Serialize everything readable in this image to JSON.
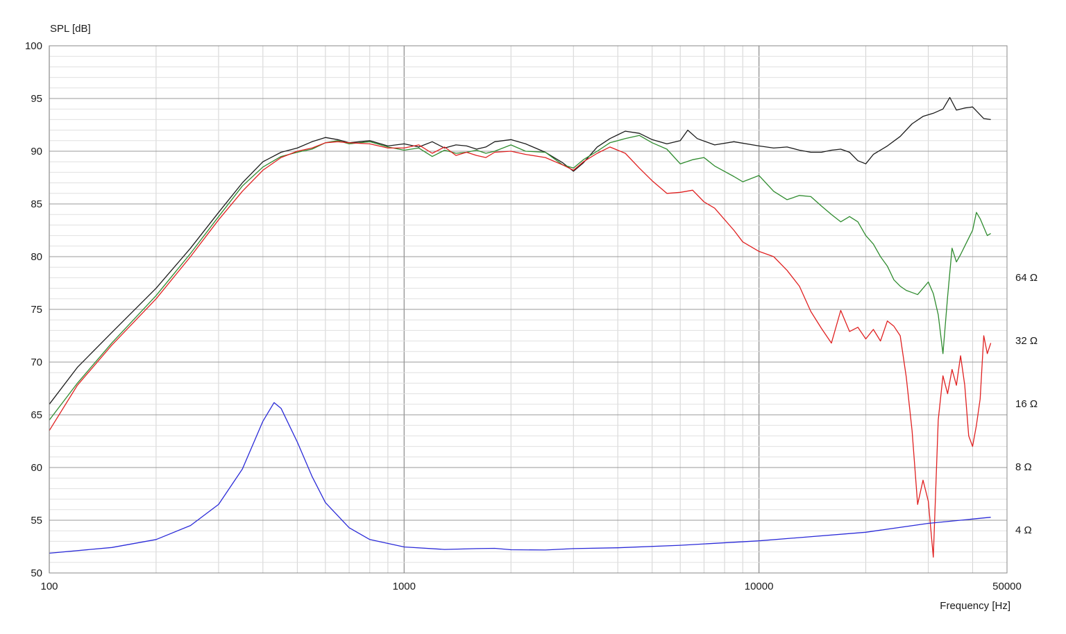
{
  "chart_data": {
    "type": "line",
    "ylabel": "SPL [dB]",
    "xlabel": "Frequency [Hz]",
    "xscale": "log",
    "xlim": [
      100,
      50000
    ],
    "ylim": [
      50,
      100
    ],
    "grid": true,
    "x_tick_labels": [
      {
        "value": 100,
        "label": "100"
      },
      {
        "value": 1000,
        "label": "1000"
      },
      {
        "value": 10000,
        "label": "10000"
      },
      {
        "value": 50000,
        "label": "50000"
      }
    ],
    "y_tick_labels": [
      "50",
      "55",
      "60",
      "65",
      "70",
      "75",
      "80",
      "85",
      "90",
      "95",
      "100"
    ],
    "impedance_axis": {
      "scale": "log2",
      "labels": [
        {
          "value": 4,
          "label": "4 Ω"
        },
        {
          "value": 8,
          "label": "8 Ω"
        },
        {
          "value": 16,
          "label": "16 Ω"
        },
        {
          "value": 32,
          "label": "32 Ω"
        },
        {
          "value": 64,
          "label": "64 Ω"
        }
      ]
    },
    "series": [
      {
        "color": "#1a1a1a",
        "axis": "spl",
        "points": [
          [
            100,
            66.0
          ],
          [
            120,
            69.5
          ],
          [
            150,
            72.8
          ],
          [
            200,
            77.0
          ],
          [
            250,
            80.8
          ],
          [
            300,
            84.2
          ],
          [
            350,
            87.0
          ],
          [
            400,
            89.0
          ],
          [
            450,
            89.9
          ],
          [
            500,
            90.3
          ],
          [
            550,
            90.9
          ],
          [
            600,
            91.3
          ],
          [
            650,
            91.1
          ],
          [
            700,
            90.8
          ],
          [
            800,
            91.0
          ],
          [
            900,
            90.5
          ],
          [
            1000,
            90.7
          ],
          [
            1100,
            90.4
          ],
          [
            1200,
            90.9
          ],
          [
            1300,
            90.3
          ],
          [
            1400,
            90.6
          ],
          [
            1500,
            90.5
          ],
          [
            1600,
            90.2
          ],
          [
            1700,
            90.4
          ],
          [
            1800,
            90.9
          ],
          [
            2000,
            91.1
          ],
          [
            2200,
            90.7
          ],
          [
            2500,
            89.9
          ],
          [
            2800,
            88.9
          ],
          [
            3000,
            88.1
          ],
          [
            3200,
            88.9
          ],
          [
            3500,
            90.4
          ],
          [
            3800,
            91.2
          ],
          [
            4200,
            91.9
          ],
          [
            4600,
            91.7
          ],
          [
            5000,
            91.1
          ],
          [
            5500,
            90.7
          ],
          [
            6000,
            91.0
          ],
          [
            6300,
            92.0
          ],
          [
            6700,
            91.2
          ],
          [
            7500,
            90.6
          ],
          [
            8500,
            90.9
          ],
          [
            10000,
            90.5
          ],
          [
            11000,
            90.3
          ],
          [
            12000,
            90.4
          ],
          [
            13000,
            90.1
          ],
          [
            14000,
            89.9
          ],
          [
            15000,
            89.9
          ],
          [
            16000,
            90.1
          ],
          [
            17000,
            90.2
          ],
          [
            18000,
            89.9
          ],
          [
            19000,
            89.1
          ],
          [
            20000,
            88.8
          ],
          [
            21000,
            89.7
          ],
          [
            23000,
            90.5
          ],
          [
            25000,
            91.4
          ],
          [
            27000,
            92.6
          ],
          [
            29000,
            93.3
          ],
          [
            31000,
            93.6
          ],
          [
            33000,
            94.0
          ],
          [
            34500,
            95.1
          ],
          [
            36000,
            93.9
          ],
          [
            38000,
            94.1
          ],
          [
            40000,
            94.2
          ],
          [
            43000,
            93.1
          ],
          [
            45000,
            93.0
          ]
        ]
      },
      {
        "color": "#2e8b2e",
        "axis": "spl",
        "points": [
          [
            100,
            64.5
          ],
          [
            120,
            68.0
          ],
          [
            150,
            71.8
          ],
          [
            200,
            76.3
          ],
          [
            250,
            80.3
          ],
          [
            300,
            83.8
          ],
          [
            350,
            86.7
          ],
          [
            400,
            88.5
          ],
          [
            450,
            89.5
          ],
          [
            500,
            89.9
          ],
          [
            550,
            90.2
          ],
          [
            600,
            90.8
          ],
          [
            650,
            91.0
          ],
          [
            700,
            90.7
          ],
          [
            800,
            90.9
          ],
          [
            900,
            90.4
          ],
          [
            1000,
            90.1
          ],
          [
            1100,
            90.3
          ],
          [
            1200,
            89.5
          ],
          [
            1300,
            90.1
          ],
          [
            1400,
            89.8
          ],
          [
            1500,
            89.9
          ],
          [
            1600,
            90.1
          ],
          [
            1700,
            89.8
          ],
          [
            1800,
            90.0
          ],
          [
            2000,
            90.6
          ],
          [
            2200,
            90.0
          ],
          [
            2500,
            89.9
          ],
          [
            2800,
            88.7
          ],
          [
            3000,
            88.4
          ],
          [
            3200,
            89.2
          ],
          [
            3500,
            90.0
          ],
          [
            3800,
            90.8
          ],
          [
            4200,
            91.2
          ],
          [
            4600,
            91.5
          ],
          [
            5000,
            90.8
          ],
          [
            5500,
            90.2
          ],
          [
            6000,
            88.8
          ],
          [
            6500,
            89.2
          ],
          [
            7000,
            89.4
          ],
          [
            7500,
            88.6
          ],
          [
            8500,
            87.6
          ],
          [
            9000,
            87.1
          ],
          [
            10000,
            87.7
          ],
          [
            11000,
            86.2
          ],
          [
            12000,
            85.4
          ],
          [
            13000,
            85.8
          ],
          [
            14000,
            85.7
          ],
          [
            15000,
            84.8
          ],
          [
            16000,
            84.0
          ],
          [
            17000,
            83.3
          ],
          [
            18000,
            83.8
          ],
          [
            19000,
            83.3
          ],
          [
            20000,
            82.0
          ],
          [
            21000,
            81.2
          ],
          [
            22000,
            80.0
          ],
          [
            23000,
            79.1
          ],
          [
            24000,
            77.8
          ],
          [
            25000,
            77.2
          ],
          [
            26000,
            76.8
          ],
          [
            27000,
            76.6
          ],
          [
            28000,
            76.4
          ],
          [
            29000,
            77.0
          ],
          [
            30000,
            77.6
          ],
          [
            31000,
            76.5
          ],
          [
            32000,
            74.5
          ],
          [
            33000,
            70.8
          ],
          [
            34000,
            76.2
          ],
          [
            35000,
            80.8
          ],
          [
            36000,
            79.5
          ],
          [
            37000,
            80.2
          ],
          [
            38000,
            81.0
          ],
          [
            40000,
            82.5
          ],
          [
            41000,
            84.2
          ],
          [
            42000,
            83.6
          ],
          [
            44000,
            82.0
          ],
          [
            45000,
            82.2
          ]
        ]
      },
      {
        "color": "#e02020",
        "axis": "spl",
        "points": [
          [
            100,
            63.5
          ],
          [
            120,
            67.8
          ],
          [
            150,
            71.6
          ],
          [
            200,
            76.0
          ],
          [
            250,
            80.0
          ],
          [
            300,
            83.5
          ],
          [
            350,
            86.2
          ],
          [
            400,
            88.2
          ],
          [
            450,
            89.4
          ],
          [
            500,
            90.0
          ],
          [
            550,
            90.3
          ],
          [
            600,
            90.8
          ],
          [
            650,
            90.9
          ],
          [
            700,
            90.8
          ],
          [
            800,
            90.7
          ],
          [
            900,
            90.3
          ],
          [
            1000,
            90.3
          ],
          [
            1100,
            90.6
          ],
          [
            1200,
            89.8
          ],
          [
            1300,
            90.4
          ],
          [
            1400,
            89.6
          ],
          [
            1500,
            89.9
          ],
          [
            1600,
            89.6
          ],
          [
            1700,
            89.4
          ],
          [
            1800,
            89.9
          ],
          [
            2000,
            90.0
          ],
          [
            2200,
            89.7
          ],
          [
            2500,
            89.4
          ],
          [
            2800,
            88.7
          ],
          [
            3000,
            88.2
          ],
          [
            3200,
            89.0
          ],
          [
            3500,
            89.8
          ],
          [
            3800,
            90.4
          ],
          [
            4200,
            89.8
          ],
          [
            4600,
            88.4
          ],
          [
            5000,
            87.2
          ],
          [
            5500,
            86.0
          ],
          [
            6000,
            86.1
          ],
          [
            6500,
            86.3
          ],
          [
            7000,
            85.2
          ],
          [
            7500,
            84.6
          ],
          [
            8500,
            82.5
          ],
          [
            9000,
            81.4
          ],
          [
            10000,
            80.5
          ],
          [
            11000,
            80.0
          ],
          [
            12000,
            78.7
          ],
          [
            13000,
            77.2
          ],
          [
            14000,
            74.8
          ],
          [
            15000,
            73.2
          ],
          [
            16000,
            71.8
          ],
          [
            17000,
            74.9
          ],
          [
            18000,
            72.9
          ],
          [
            19000,
            73.3
          ],
          [
            20000,
            72.2
          ],
          [
            21000,
            73.1
          ],
          [
            22000,
            72.0
          ],
          [
            23000,
            73.9
          ],
          [
            24000,
            73.4
          ],
          [
            25000,
            72.5
          ],
          [
            26000,
            68.6
          ],
          [
            27000,
            63.5
          ],
          [
            28000,
            56.5
          ],
          [
            29000,
            58.8
          ],
          [
            30000,
            56.8
          ],
          [
            31000,
            51.5
          ],
          [
            32000,
            64.5
          ],
          [
            33000,
            68.7
          ],
          [
            34000,
            67.0
          ],
          [
            35000,
            69.3
          ],
          [
            36000,
            67.8
          ],
          [
            37000,
            70.6
          ],
          [
            38000,
            67.8
          ],
          [
            39000,
            63.0
          ],
          [
            40000,
            62.0
          ],
          [
            41000,
            64.0
          ],
          [
            42000,
            66.5
          ],
          [
            43000,
            72.5
          ],
          [
            44000,
            70.8
          ],
          [
            45000,
            71.8
          ]
        ]
      },
      {
        "color": "#2a2ad8",
        "axis": "impedance",
        "points": [
          [
            100,
            3.1
          ],
          [
            150,
            3.3
          ],
          [
            200,
            3.6
          ],
          [
            250,
            4.2
          ],
          [
            300,
            5.3
          ],
          [
            350,
            7.8
          ],
          [
            400,
            13.2
          ],
          [
            430,
            16.2
          ],
          [
            450,
            15.2
          ],
          [
            500,
            10.5
          ],
          [
            550,
            7.2
          ],
          [
            600,
            5.4
          ],
          [
            700,
            4.1
          ],
          [
            800,
            3.6
          ],
          [
            1000,
            3.32
          ],
          [
            1300,
            3.23
          ],
          [
            1600,
            3.26
          ],
          [
            1800,
            3.27
          ],
          [
            2000,
            3.22
          ],
          [
            2500,
            3.21
          ],
          [
            3000,
            3.26
          ],
          [
            4000,
            3.29
          ],
          [
            6000,
            3.38
          ],
          [
            10000,
            3.55
          ],
          [
            20000,
            3.9
          ],
          [
            30000,
            4.3
          ],
          [
            45000,
            4.6
          ]
        ]
      }
    ]
  }
}
